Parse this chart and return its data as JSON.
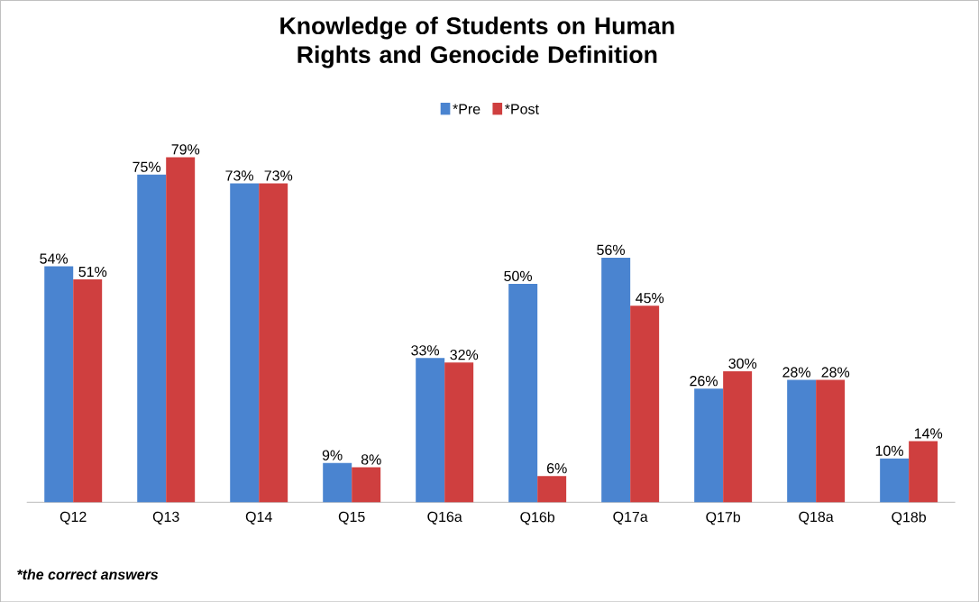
{
  "chart_data": {
    "type": "bar",
    "title": "Knowledge of Students on Human Rights and Genocide Definition",
    "categories": [
      "Q12",
      "Q13",
      "Q14",
      "Q15",
      "Q16a",
      "Q16b",
      "Q17a",
      "Q17b",
      "Q18a",
      "Q18b"
    ],
    "series": [
      {
        "name": "*Pre",
        "color": "#4a84d0",
        "values": [
          54,
          75,
          73,
          9,
          33,
          50,
          56,
          26,
          28,
          10
        ],
        "value_labels": [
          "54%",
          "75%",
          "73%",
          "9%",
          "33%",
          "50%",
          "56%",
          "26%",
          "28%",
          "10%"
        ]
      },
      {
        "name": "*Post",
        "color": "#cf3f3f",
        "values": [
          51,
          79,
          73,
          8,
          32,
          6,
          45,
          30,
          28,
          14
        ],
        "value_labels": [
          "51%",
          "79%",
          "73%",
          "8%",
          "32%",
          "6%",
          "45%",
          "30%",
          "28%",
          "14%"
        ]
      }
    ],
    "legend": "top",
    "annotations": [
      "*the correct answers"
    ]
  }
}
